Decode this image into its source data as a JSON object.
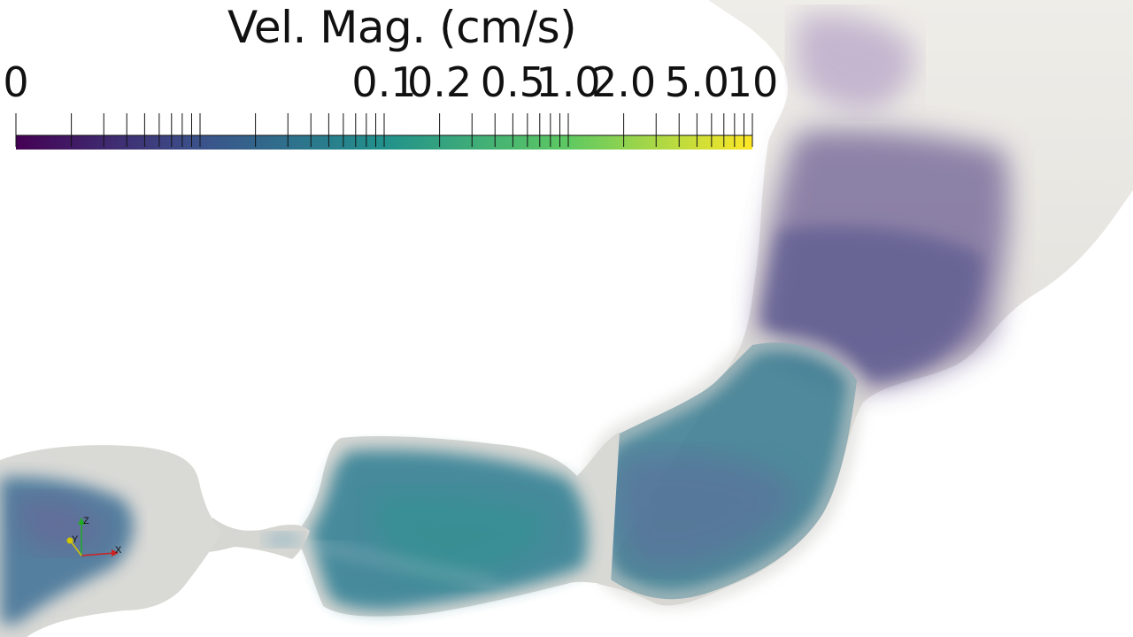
{
  "colorbar": {
    "title": "Vel. Mag. (cm/s)",
    "scale": "log",
    "colormap": "viridis",
    "colors": [
      "#440154",
      "#3b528b",
      "#21918c",
      "#5ec962",
      "#fde725"
    ],
    "labels": [
      {
        "text": "0",
        "value": 0.001
      },
      {
        "text": "0.1",
        "value": 0.1
      },
      {
        "text": "0.2",
        "value": 0.2
      },
      {
        "text": "0.5",
        "value": 0.5
      },
      {
        "text": "1.0",
        "value": 1.0
      },
      {
        "text": "2.0",
        "value": 2.0
      },
      {
        "text": "5.0",
        "value": 5.0
      },
      {
        "text": "10",
        "value": 10
      }
    ]
  },
  "axes_widget": {
    "x_label": "X",
    "y_label": "Y",
    "z_label": "Z",
    "x_color": "#cc2222",
    "y_color": "#d4c400",
    "z_color": "#22aa22"
  }
}
